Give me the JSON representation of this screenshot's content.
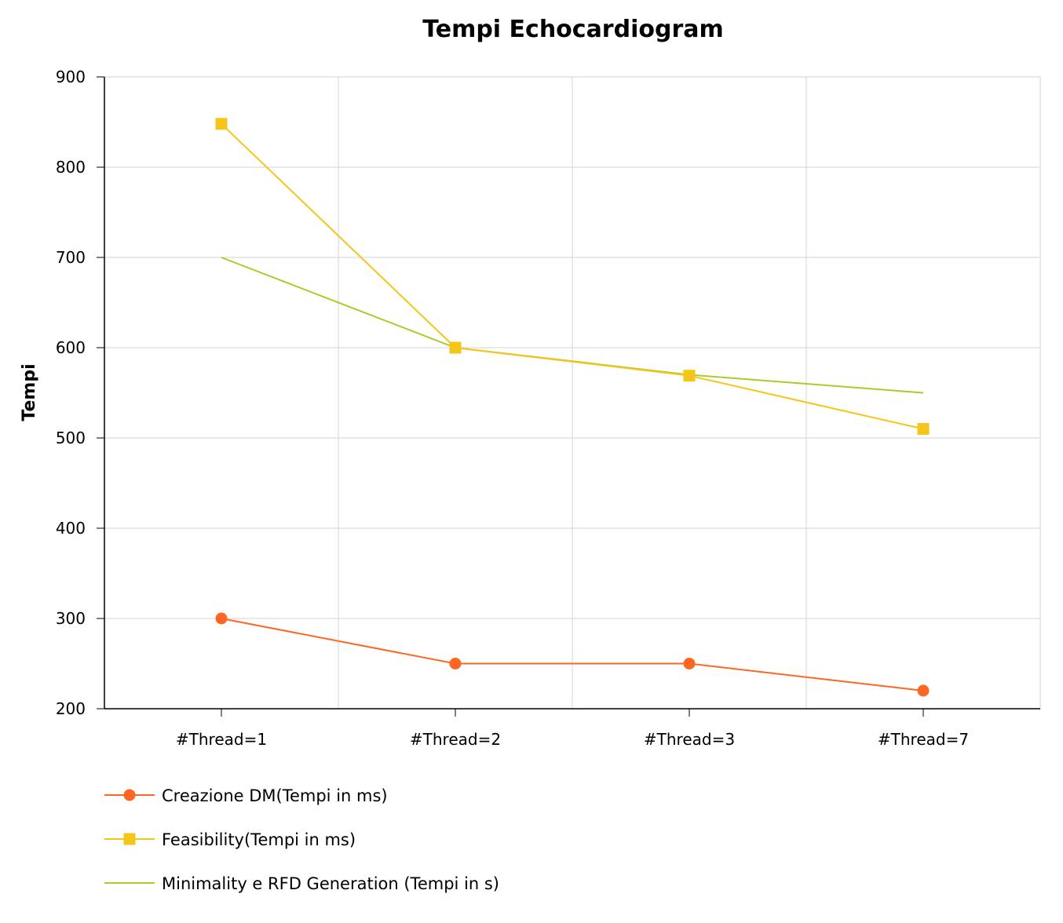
{
  "chart_data": {
    "type": "line",
    "title": "Tempi Echocardiogram",
    "xlabel": "",
    "ylabel": "Tempi",
    "categories": [
      "#Thread=1",
      "#Thread=2",
      "#Thread=3",
      "#Thread=7"
    ],
    "ylim": [
      200,
      900
    ],
    "yticks": [
      200,
      300,
      400,
      500,
      600,
      700,
      800,
      900
    ],
    "grid": true,
    "legend_position": "bottom-left",
    "series": [
      {
        "name": "Creazione DM(Tempi in ms)",
        "values": [
          300,
          250,
          250,
          220
        ],
        "color": "#ff6622",
        "marker": "circle"
      },
      {
        "name": "Feasibility(Tempi in ms)",
        "values": [
          848,
          600,
          569,
          510
        ],
        "color": "#f5c518",
        "marker": "square"
      },
      {
        "name": "Minimality e RFD Generation (Tempi in s)",
        "values": [
          700,
          600,
          570,
          550
        ],
        "color": "#a9cc2a",
        "marker": "none"
      }
    ]
  }
}
